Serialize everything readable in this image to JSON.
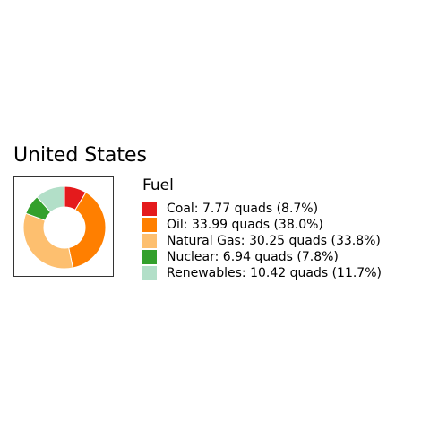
{
  "chart_data": {
    "type": "pie",
    "title": "United States",
    "legend_title": "Fuel",
    "legend_position": "right",
    "donut": true,
    "slices": [
      {
        "label": "Coal",
        "value": 7.77,
        "percent": 8.7,
        "color": "#e41a1c",
        "legend_text": "Coal: 7.77 quads (8.7%)"
      },
      {
        "label": "Oil",
        "value": 33.99,
        "percent": 38.0,
        "color": "#ff7f00",
        "legend_text": "Oil: 33.99 quads (38.0%)"
      },
      {
        "label": "Natural Gas",
        "value": 30.25,
        "percent": 33.8,
        "color": "#fdbf6f",
        "legend_text": "Natural Gas: 30.25 quads (33.8%)"
      },
      {
        "label": "Nuclear",
        "value": 6.94,
        "percent": 7.8,
        "color": "#33a02c",
        "legend_text": "Nuclear: 6.94 quads (7.8%)"
      },
      {
        "label": "Renewables",
        "value": 10.42,
        "percent": 11.7,
        "color": "#b2dfc8",
        "legend_text": "Renewables: 10.42 quads (11.7%)"
      }
    ]
  }
}
